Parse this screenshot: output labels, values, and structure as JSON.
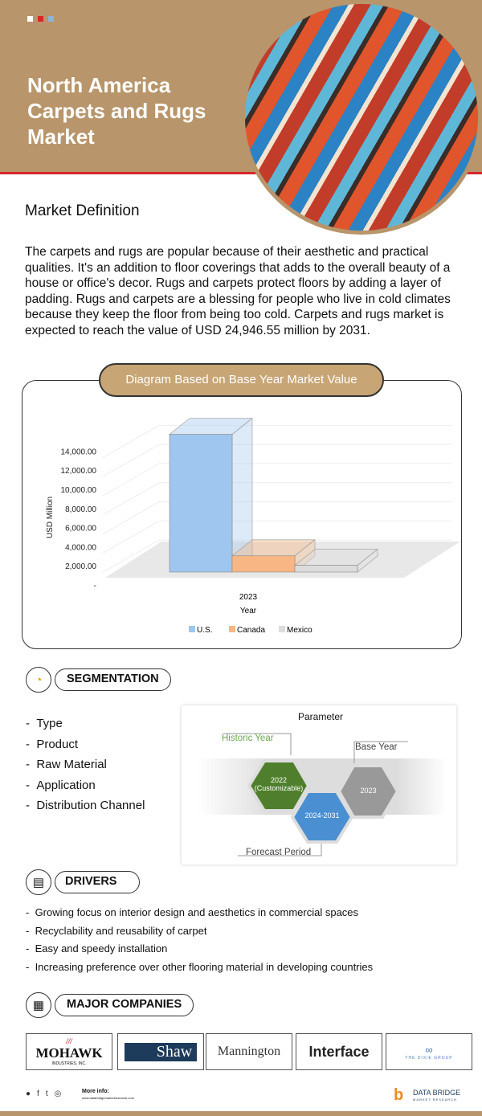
{
  "header": {
    "title": "North America Carpets and Rugs Market",
    "dot_colors": [
      "#ffffff",
      "#d8262b",
      "#8ab4d8"
    ]
  },
  "definition": {
    "heading": "Market Definition",
    "text": "The carpets and rugs are popular because of their aesthetic and practical qualities. It's an addition to floor coverings that adds to the overall beauty of a house or office's decor. Rugs and carpets protect floors by adding a layer of padding. Rugs and carpets are a blessing for people who live in cold climates because they keep the floor from being too cold. Carpets and rugs market is expected to reach the value of USD 24,946.55 million by 2031."
  },
  "diagram_title": "Diagram Based on Base Year Market Value",
  "chart_data": {
    "type": "bar",
    "title": "Diagram Based on Base Year Market Value",
    "categories": [
      "2023"
    ],
    "series": [
      {
        "name": "U.S.",
        "values": [
          14400
        ],
        "color": "#9fc6ee"
      },
      {
        "name": "Canada",
        "values": [
          1700
        ],
        "color": "#f7b683"
      },
      {
        "name": "Mexico",
        "values": [
          700
        ],
        "color": "#dcdcdc"
      }
    ],
    "xlabel": "Year",
    "ylabel": "USD Million",
    "ylim": [
      0,
      14000
    ],
    "yticks": [
      "-",
      "2,000.00",
      "4,000.00",
      "6,000.00",
      "8,000.00",
      "10,000.00",
      "12,000.00",
      "14,000.00"
    ],
    "legend": "bottom"
  },
  "segmentation": {
    "heading": "SEGMENTATION",
    "items": [
      "Type",
      "Product",
      "Raw Material",
      "Application",
      "Distribution Channel"
    ]
  },
  "parameter": {
    "title": "Parameter",
    "historic_label": "Historic Year",
    "historic_value": "2022",
    "historic_note": "(Customizable)",
    "forecast_label": "Forecast Period",
    "forecast_value": "2024-2031",
    "base_label": "Base Year",
    "base_value": "2023"
  },
  "drivers": {
    "heading": "DRIVERS",
    "items": [
      "Growing focus on interior design and aesthetics in commercial spaces",
      "Recyclability and reusability of carpet",
      "Easy and speedy installation",
      "Increasing preference over other flooring material in developing countries"
    ]
  },
  "companies": {
    "heading": "MAJOR COMPANIES",
    "items": [
      {
        "name": "MOHAWK",
        "sub": "INDUSTRIES, INC."
      },
      {
        "name": "Shaw"
      },
      {
        "name": "Mannington"
      },
      {
        "name": "Interface"
      },
      {
        "name": "THE DIXIE GROUP"
      }
    ]
  },
  "footer": {
    "more_info": "More info:",
    "url": "www.databridgemarketresearch.com",
    "brand": "DATA BRIDGE",
    "brand_sub": "MARKET RESEARCH"
  }
}
